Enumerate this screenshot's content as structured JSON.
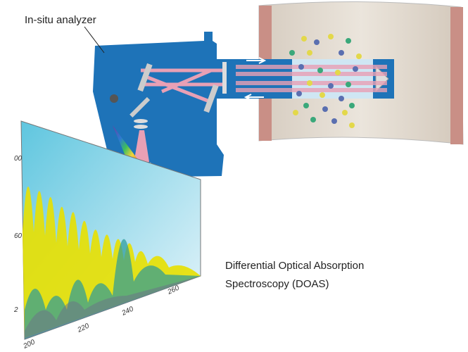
{
  "labels": {
    "analyzer": "In-situ analyzer",
    "caption_lines": [
      "Differential Optical Absorption",
      "Spectroscopy (DOAS)"
    ]
  },
  "spectrum": {
    "y_labels": [
      "00",
      "60",
      "2"
    ],
    "x_labels": [
      "200",
      "220",
      "240",
      "260"
    ]
  }
}
